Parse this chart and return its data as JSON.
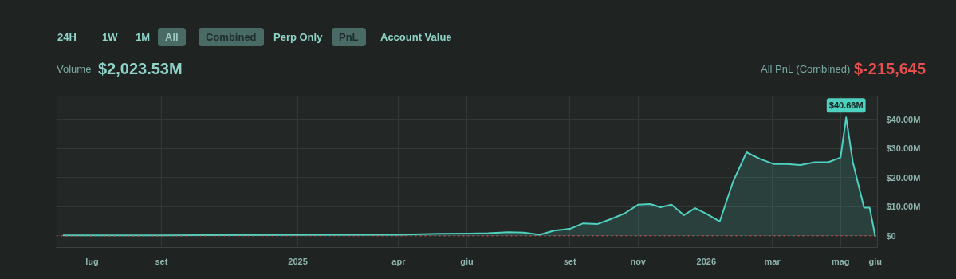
{
  "chart_data": {
    "type": "area",
    "annotations": [
      "24H",
      "1W",
      "1M",
      "All",
      "Combined",
      "Perp Only",
      "PnL",
      "Account Value",
      "Volume",
      "$2,023.53M",
      "All PnL (Combined)",
      "$-215,645",
      {
        "text": "$40.66M",
        "x": "2026-05-06",
        "y": 40.66
      }
    ],
    "x": [
      "2024-06-05",
      "2024-09-01",
      "2025-01-01",
      "2025-04-01",
      "2025-05-07",
      "2025-06-03",
      "2025-06-20",
      "2025-07-08",
      "2025-07-22",
      "2025-08-05",
      "2025-08-18",
      "2025-09-01",
      "2025-09-13",
      "2025-09-26",
      "2025-10-08",
      "2025-10-20",
      "2025-11-01",
      "2025-11-12",
      "2025-11-21",
      "2025-12-01",
      "2025-12-12",
      "2025-12-22",
      "2026-01-01",
      "2026-01-13",
      "2026-01-25",
      "2026-02-06",
      "2026-02-18",
      "2026-03-02",
      "2026-03-14",
      "2026-03-26",
      "2026-04-08",
      "2026-04-20",
      "2026-05-01",
      "2026-05-06",
      "2026-05-12",
      "2026-05-22",
      "2026-05-27",
      "2026-06-01"
    ],
    "series": [
      {
        "color": "#4fd1c0",
        "values": [
          0.2,
          0.2,
          0.3,
          0.4,
          0.7,
          0.8,
          0.9,
          1.3,
          1.1,
          0.4,
          1.8,
          2.4,
          4.3,
          4.1,
          5.8,
          7.7,
          10.7,
          10.9,
          9.8,
          10.7,
          7.1,
          9.5,
          7.6,
          4.9,
          18.7,
          28.7,
          26.4,
          24.7,
          24.7,
          24.3,
          25.3,
          25.3,
          26.9,
          40.66,
          25.3,
          9.7,
          9.7,
          -0.22
        ]
      }
    ],
    "xlim": [
      "2024-05-30",
      "2026-06-03"
    ],
    "xticks": [
      {
        "value": "2024-07-01",
        "label": "lug"
      },
      {
        "value": "2024-09-01",
        "label": "set"
      },
      {
        "value": "2025-01-01",
        "label": "2025"
      },
      {
        "value": "2025-04-01",
        "label": "apr"
      },
      {
        "value": "2025-06-01",
        "label": "giu"
      },
      {
        "value": "2025-09-01",
        "label": "set"
      },
      {
        "value": "2025-11-01",
        "label": "nov"
      },
      {
        "value": "2026-01-01",
        "label": "2026"
      },
      {
        "value": "2026-03-01",
        "label": "mar"
      },
      {
        "value": "2026-05-01",
        "label": "mag"
      },
      {
        "value": "2026-06-01",
        "label": "giu"
      }
    ],
    "ylim": [
      -4,
      48
    ],
    "yticks": [
      {
        "value": 0,
        "label": "$0"
      },
      {
        "value": 10,
        "label": "$10.00M"
      },
      {
        "value": 20,
        "label": "$20.00M"
      },
      {
        "value": 30,
        "label": "$30.00M"
      },
      {
        "value": 40,
        "label": "$40.00M"
      }
    ],
    "ref_lines": [
      {
        "axis": "y",
        "value": 0,
        "color": "#e05555",
        "line_style": "dotted"
      }
    ],
    "grid": true,
    "marker": "none",
    "line_style": "solid"
  }
}
